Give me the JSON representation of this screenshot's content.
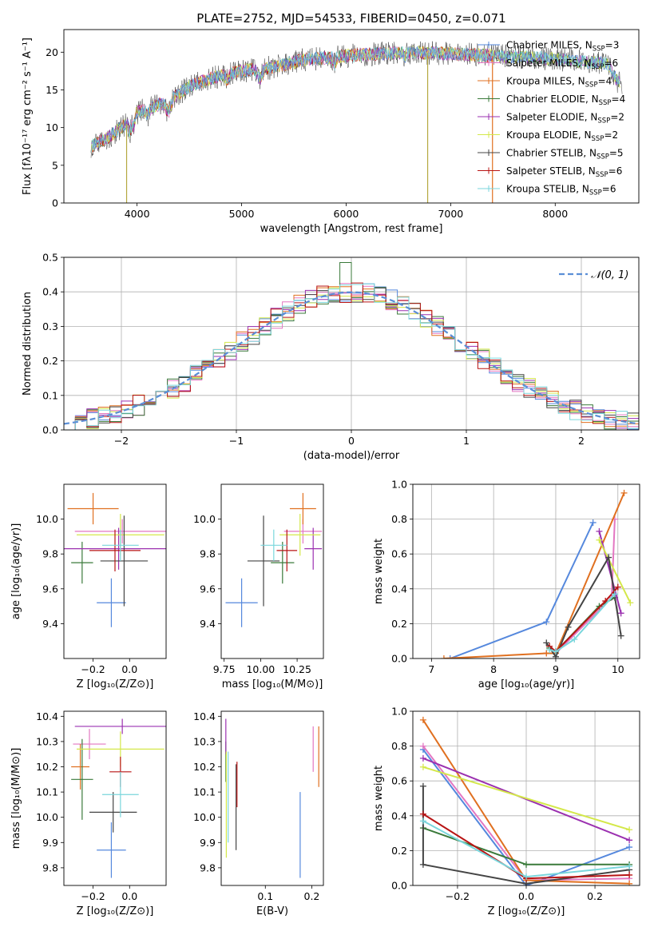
{
  "series": [
    {
      "name": "Chabrier MILES",
      "color": "#5588dd",
      "nssp": "3"
    },
    {
      "name": "Salpeter MILES",
      "color": "#e377c2",
      "nssp": "6"
    },
    {
      "name": "Kroupa MILES",
      "color": "#e07020",
      "nssp": "4"
    },
    {
      "name": "Chabrier ELODIE",
      "color": "#3a7a3a",
      "nssp": "4"
    },
    {
      "name": "Salpeter ELODIE",
      "color": "#9b30b0",
      "nssp": "2"
    },
    {
      "name": "Kroupa ELODIE",
      "color": "#d4e84a",
      "nssp": "2"
    },
    {
      "name": "Chabrier STELIB",
      "color": "#444444",
      "nssp": "5"
    },
    {
      "name": "Salpeter STELIB",
      "color": "#b81414",
      "nssp": "6"
    },
    {
      "name": "Kroupa STELIB",
      "color": "#7ad6dc",
      "nssp": "6"
    }
  ],
  "chart_data": [
    {
      "id": "spectrum",
      "type": "line",
      "title": "PLATE=2752, MJD=54533, FIBERID=0450, z=0.071",
      "xlabel": "wavelength [Angstrom, rest frame]",
      "ylabel": "Flux [fλ10⁻¹⁷ erg cm⁻² s⁻¹ A⁻¹]",
      "xlim": [
        3300,
        8800
      ],
      "ylim": [
        0,
        23
      ],
      "xticks": [
        4000,
        5000,
        6000,
        7000,
        8000
      ],
      "yticks": [
        0,
        5,
        10,
        15,
        20
      ],
      "legend": "right",
      "grid": false,
      "continuum": [
        [
          3550,
          7.5
        ],
        [
          3700,
          8.5
        ],
        [
          3900,
          10.5
        ],
        [
          4000,
          12
        ],
        [
          4100,
          12.5
        ],
        [
          4300,
          13.5
        ],
        [
          4500,
          15.5
        ],
        [
          4700,
          16.5
        ],
        [
          5000,
          17.5
        ],
        [
          5300,
          18
        ],
        [
          5600,
          19
        ],
        [
          6000,
          19.5
        ],
        [
          6300,
          19.8
        ],
        [
          6600,
          20
        ],
        [
          7000,
          19.8
        ],
        [
          7400,
          19.5
        ],
        [
          7800,
          19.3
        ],
        [
          8200,
          18.8
        ],
        [
          8500,
          18.5
        ],
        [
          8600,
          16
        ]
      ],
      "spikes": [
        3900,
        6780,
        7400
      ]
    },
    {
      "id": "residuals",
      "type": "histogram",
      "xlabel": "(data-model)/error",
      "ylabel": "Normed distribution",
      "xlim": [
        -2.5,
        2.5
      ],
      "ylim": [
        0,
        0.5
      ],
      "xticks": [
        -2,
        -1,
        0,
        1,
        2
      ],
      "yticks": [
        0.0,
        0.1,
        0.2,
        0.3,
        0.4,
        0.5
      ],
      "bin_width": 0.1,
      "grid": true,
      "reference": {
        "name": "𝒩(0, 1)",
        "color": "#5a8ed6"
      }
    },
    {
      "id": "age-vs-Z",
      "type": "errorbar",
      "xlabel": "Z [log₁₀(Z/Z⊙)]",
      "ylabel": "age  [log₁₀(age/yr)]",
      "xlim": [
        -0.36,
        0.2
      ],
      "ylim": [
        9.2,
        10.2
      ],
      "xticks": [
        -0.2,
        0.0
      ],
      "yticks": [
        9.4,
        9.6,
        9.8,
        10.0
      ],
      "points": [
        {
          "x": -0.1,
          "xerr": 0.08,
          "y": 9.52,
          "yerr": 0.14
        },
        {
          "x": -0.04,
          "xerr": 0.26,
          "y": 9.93,
          "yerr": 0.07
        },
        {
          "x": -0.2,
          "xerr": 0.14,
          "y": 10.06,
          "yerr": 0.09
        },
        {
          "x": -0.26,
          "xerr": 0.06,
          "y": 9.75,
          "yerr": 0.12
        },
        {
          "x": -0.06,
          "xerr": 0.3,
          "y": 9.83,
          "yerr": 0.12
        },
        {
          "x": -0.05,
          "xerr": 0.24,
          "y": 9.91,
          "yerr": 0.12
        },
        {
          "x": -0.03,
          "xerr": 0.13,
          "y": 9.76,
          "yerr": 0.26
        },
        {
          "x": -0.08,
          "xerr": 0.14,
          "y": 9.82,
          "yerr": 0.12
        },
        {
          "x": -0.05,
          "xerr": 0.1,
          "y": 9.85,
          "yerr": 0.09
        }
      ]
    },
    {
      "id": "age-vs-mass",
      "type": "errorbar",
      "xlabel": "mass [log₁₀(M/M⊙)]",
      "ylabel": "",
      "xlim": [
        9.73,
        10.43
      ],
      "ylim": [
        9.2,
        10.2
      ],
      "xticks": [
        9.75,
        10.0,
        10.25
      ],
      "yticks": [
        9.4,
        9.6,
        9.8,
        10.0
      ],
      "points": [
        {
          "x": 9.87,
          "xerr": 0.11,
          "y": 9.52,
          "yerr": 0.14
        },
        {
          "x": 10.29,
          "xerr": 0.13,
          "y": 9.93,
          "yerr": 0.07
        },
        {
          "x": 10.29,
          "xerr": 0.09,
          "y": 10.06,
          "yerr": 0.09
        },
        {
          "x": 10.15,
          "xerr": 0.08,
          "y": 9.75,
          "yerr": 0.12
        },
        {
          "x": 10.36,
          "xerr": 0.06,
          "y": 9.83,
          "yerr": 0.12
        },
        {
          "x": 10.27,
          "xerr": 0.14,
          "y": 9.91,
          "yerr": 0.12
        },
        {
          "x": 10.02,
          "xerr": 0.11,
          "y": 9.76,
          "yerr": 0.26
        },
        {
          "x": 10.18,
          "xerr": 0.07,
          "y": 9.82,
          "yerr": 0.12
        },
        {
          "x": 10.09,
          "xerr": 0.09,
          "y": 9.85,
          "yerr": 0.09
        }
      ]
    },
    {
      "id": "weight-vs-age",
      "type": "line",
      "xlabel": "age  [log₁₀(age/yr)]",
      "ylabel": "mass weight",
      "xlim": [
        6.7,
        10.35
      ],
      "ylim": [
        0,
        1
      ],
      "xticks": [
        7,
        8,
        9,
        10
      ],
      "yticks": [
        0.0,
        0.2,
        0.4,
        0.6,
        0.8,
        1.0
      ],
      "grid": true,
      "series": [
        {
          "x": [
            7.3,
            8.85,
            9.6
          ],
          "y": [
            0.0,
            0.21,
            0.78
          ]
        },
        {
          "x": [
            8.85,
            9.0,
            9.9,
            9.95
          ],
          "y": [
            0.03,
            0.03,
            0.35,
            0.8
          ]
        },
        {
          "x": [
            7.2,
            8.85,
            9.0,
            10.1
          ],
          "y": [
            0.0,
            0.03,
            0.03,
            0.95
          ]
        },
        {
          "x": [
            8.9,
            9.0,
            9.7,
            9.95
          ],
          "y": [
            0.06,
            0.04,
            0.3,
            0.35
          ]
        },
        {
          "x": [
            9.7,
            10.05
          ],
          "y": [
            0.73,
            0.26
          ]
        },
        {
          "x": [
            9.7,
            10.2
          ],
          "y": [
            0.68,
            0.32
          ]
        },
        {
          "x": [
            8.85,
            9.0,
            9.2,
            9.85,
            10.05
          ],
          "y": [
            0.09,
            0.01,
            0.18,
            0.58,
            0.13
          ]
        },
        {
          "x": [
            8.9,
            9.0,
            9.8,
            10.0
          ],
          "y": [
            0.07,
            0.04,
            0.33,
            0.41
          ]
        },
        {
          "x": [
            8.9,
            9.0,
            9.3,
            9.95
          ],
          "y": [
            0.05,
            0.04,
            0.11,
            0.37
          ]
        }
      ]
    },
    {
      "id": "mass-vs-Z",
      "type": "errorbar",
      "xlabel": "Z [log₁₀(Z/Z⊙)]",
      "ylabel": "mass [log₁₀(M/M⊙)]",
      "xlim": [
        -0.36,
        0.2
      ],
      "ylim": [
        9.73,
        10.42
      ],
      "xticks": [
        -0.2,
        0.0
      ],
      "yticks": [
        9.8,
        9.9,
        10.0,
        10.1,
        10.2,
        10.3,
        10.4
      ],
      "points": [
        {
          "x": -0.1,
          "xerr": 0.08,
          "y": 9.87,
          "yerr": 0.11
        },
        {
          "x": -0.22,
          "xerr": 0.09,
          "y": 10.29,
          "yerr": 0.06
        },
        {
          "x": -0.27,
          "xerr": 0.05,
          "y": 10.2,
          "yerr": 0.09
        },
        {
          "x": -0.26,
          "xerr": 0.06,
          "y": 10.15,
          "yerr": 0.16
        },
        {
          "x": -0.04,
          "xerr": 0.26,
          "y": 10.36,
          "yerr": 0.03
        },
        {
          "x": -0.05,
          "xerr": 0.24,
          "y": 10.27,
          "yerr": 0.07
        },
        {
          "x": -0.09,
          "xerr": 0.13,
          "y": 10.02,
          "yerr": 0.08
        },
        {
          "x": -0.05,
          "xerr": 0.06,
          "y": 10.18,
          "yerr": 0.06
        },
        {
          "x": -0.05,
          "xerr": 0.1,
          "y": 10.09,
          "yerr": 0.09
        }
      ]
    },
    {
      "id": "mass-vs-ebv",
      "type": "errorbar",
      "xlabel": "E(B-V)",
      "ylabel": "",
      "xlim": [
        0.005,
        0.225
      ],
      "ylim": [
        9.73,
        10.42
      ],
      "xticks": [
        0.1,
        0.2
      ],
      "yticks": [
        9.8,
        9.9,
        10.0,
        10.1,
        10.2,
        10.3,
        10.4
      ],
      "points": [
        {
          "x": 0.175,
          "xerr": 0,
          "y": 9.93,
          "yerr": 0.17
        },
        {
          "x": 0.203,
          "xerr": 0,
          "y": 10.27,
          "yerr": 0.09
        },
        {
          "x": 0.215,
          "xerr": 0,
          "y": 10.24,
          "yerr": 0.12
        },
        {
          "x": 0.015,
          "xerr": 0,
          "y": 10.22,
          "yerr": 0.08
        },
        {
          "x": 0.015,
          "xerr": 0,
          "y": 10.32,
          "yerr": 0.07
        },
        {
          "x": 0.016,
          "xerr": 0,
          "y": 10.05,
          "yerr": 0.21
        },
        {
          "x": 0.037,
          "xerr": 0,
          "y": 10.04,
          "yerr": 0.17
        },
        {
          "x": 0.039,
          "xerr": 0,
          "y": 10.13,
          "yerr": 0.09
        },
        {
          "x": 0.02,
          "xerr": 0,
          "y": 10.08,
          "yerr": 0.18
        }
      ]
    },
    {
      "id": "weight-vs-Z",
      "type": "line",
      "xlabel": "Z [log₁₀(Z/Z⊙)]",
      "ylabel": "mass weight",
      "xlim": [
        -0.33,
        0.33
      ],
      "ylim": [
        0,
        1
      ],
      "xticks": [
        -0.2,
        0.0,
        0.2
      ],
      "yticks": [
        0.0,
        0.2,
        0.4,
        0.6,
        0.8,
        1.0
      ],
      "grid": true,
      "series": [
        {
          "x": [
            -0.3,
            0.0,
            0.3
          ],
          "y": [
            0.78,
            0.0,
            0.22
          ]
        },
        {
          "x": [
            -0.3,
            0.0,
            0.3
          ],
          "y": [
            0.8,
            0.03,
            0.04
          ]
        },
        {
          "x": [
            -0.3,
            0.0,
            0.3
          ],
          "y": [
            0.95,
            0.03,
            0.01
          ]
        },
        {
          "x": [
            -0.3,
            0.0,
            0.3
          ],
          "y": [
            0.33,
            0.12,
            0.12
          ]
        },
        {
          "x": [
            -0.3,
            0.3
          ],
          "y": [
            0.73,
            0.26
          ]
        },
        {
          "x": [
            -0.3,
            0.3
          ],
          "y": [
            0.68,
            0.32
          ]
        },
        {
          "x": [
            -0.3,
            -0.3,
            0.0,
            0.3
          ],
          "y": [
            0.57,
            0.12,
            0.01,
            0.09
          ]
        },
        {
          "x": [
            -0.3,
            0.0,
            0.3
          ],
          "y": [
            0.41,
            0.04,
            0.06
          ]
        },
        {
          "x": [
            -0.3,
            0.0,
            0.3
          ],
          "y": [
            0.37,
            0.05,
            0.11
          ]
        }
      ]
    }
  ]
}
